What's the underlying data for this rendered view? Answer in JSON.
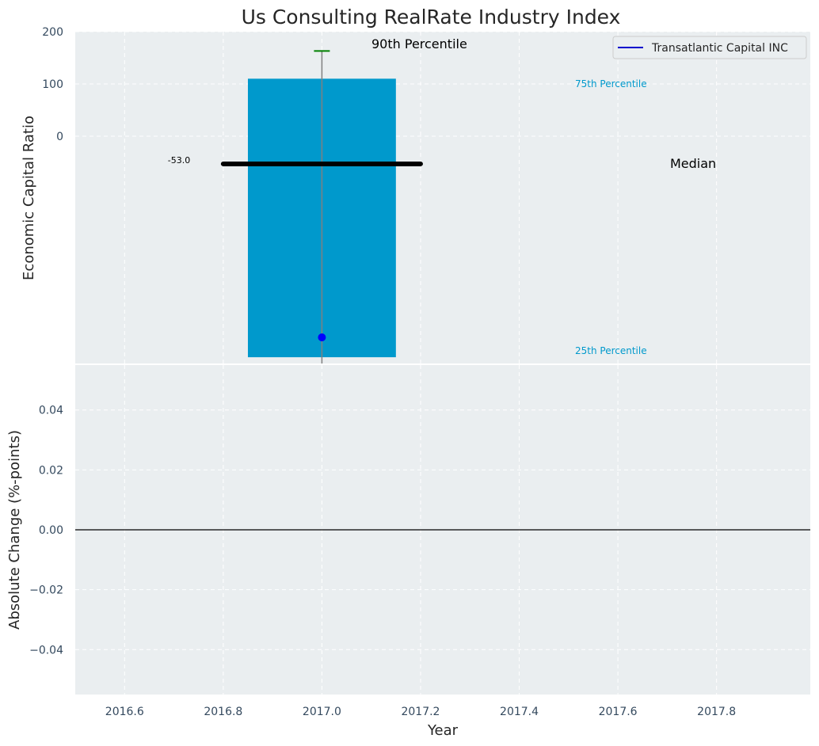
{
  "chart_data": [
    {
      "type": "bar",
      "title": "Us Consulting RealRate Industry Index",
      "ylabel": "Economic Capital Ratio",
      "xlim": [
        2016.5,
        2017.99
      ],
      "ylim": [
        -435,
        200
      ],
      "yticks": [
        0,
        100,
        200
      ],
      "grid": true,
      "legend": {
        "position": "top-right",
        "entries": [
          "Transatlantic Capital INC"
        ]
      },
      "bar": {
        "x": 2017.0,
        "width": 0.3,
        "bottom": -423,
        "top": 110,
        "color": "#0099cc"
      },
      "whisker": {
        "x": 2017.0,
        "low": -435,
        "high": 163,
        "cap_color": "#008000"
      },
      "median": {
        "value": -53.0,
        "x_start": 2016.8,
        "x_end": 2017.2,
        "label_value": "-53.0"
      },
      "company_point": {
        "name": "Transatlantic Capital INC",
        "x": 2017.0,
        "y": -385,
        "color": "#0000ff"
      },
      "annotations": {
        "p90": "90th Percentile",
        "p75": "75th Percentile",
        "median": "Median",
        "p25": "25th Percentile"
      }
    },
    {
      "type": "line",
      "xlabel": "Year",
      "ylabel": "Absolute Change (%-points)",
      "xlim": [
        2016.5,
        2017.99
      ],
      "ylim": [
        -0.055,
        0.055
      ],
      "yticks": [
        -0.04,
        -0.02,
        0.0,
        0.02,
        0.04
      ],
      "ytick_labels": [
        "−0.04",
        "−0.02",
        "0.00",
        "0.02",
        "0.04"
      ],
      "xticks": [
        2016.6,
        2016.8,
        2017.0,
        2017.2,
        2017.4,
        2017.6,
        2017.8
      ],
      "xtick_labels": [
        "2016.6",
        "2016.8",
        "2017.0",
        "2017.2",
        "2017.4",
        "2017.6",
        "2017.8"
      ],
      "hline": 0.0,
      "series": []
    }
  ],
  "colors": {
    "axes_bg": "#eaeef0",
    "grid": "#ffffff",
    "tick_text": "#34495e",
    "percentile_text": "#0099cc"
  }
}
